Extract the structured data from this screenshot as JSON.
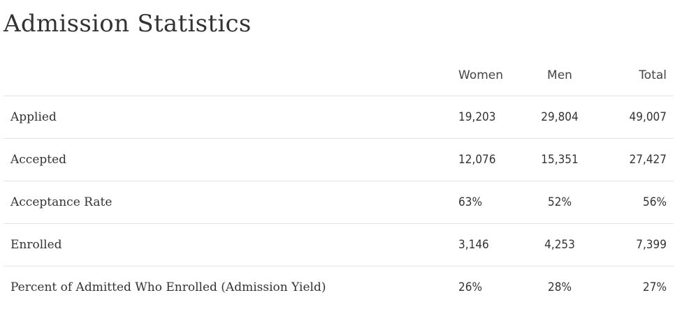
{
  "page": {
    "title": "Admission Statistics"
  },
  "table": {
    "columns": {
      "label": "",
      "women": "Women",
      "men": "Men",
      "total": "Total"
    },
    "rows": [
      {
        "label": "Applied",
        "women": "19,203",
        "men": "29,804",
        "total": "49,007"
      },
      {
        "label": "Accepted",
        "women": "12,076",
        "men": "15,351",
        "total": "27,427"
      },
      {
        "label": "Acceptance Rate",
        "women": "63%",
        "men": "52%",
        "total": "56%"
      },
      {
        "label": "Enrolled",
        "women": "3,146",
        "men": "4,253",
        "total": "7,399"
      },
      {
        "label": "Percent of Admitted Who Enrolled (Admission Yield)",
        "women": "26%",
        "men": "28%",
        "total": "27%"
      }
    ]
  },
  "colors": {
    "text": "#333333",
    "divider": "#e3e3e3",
    "background": "#ffffff"
  }
}
